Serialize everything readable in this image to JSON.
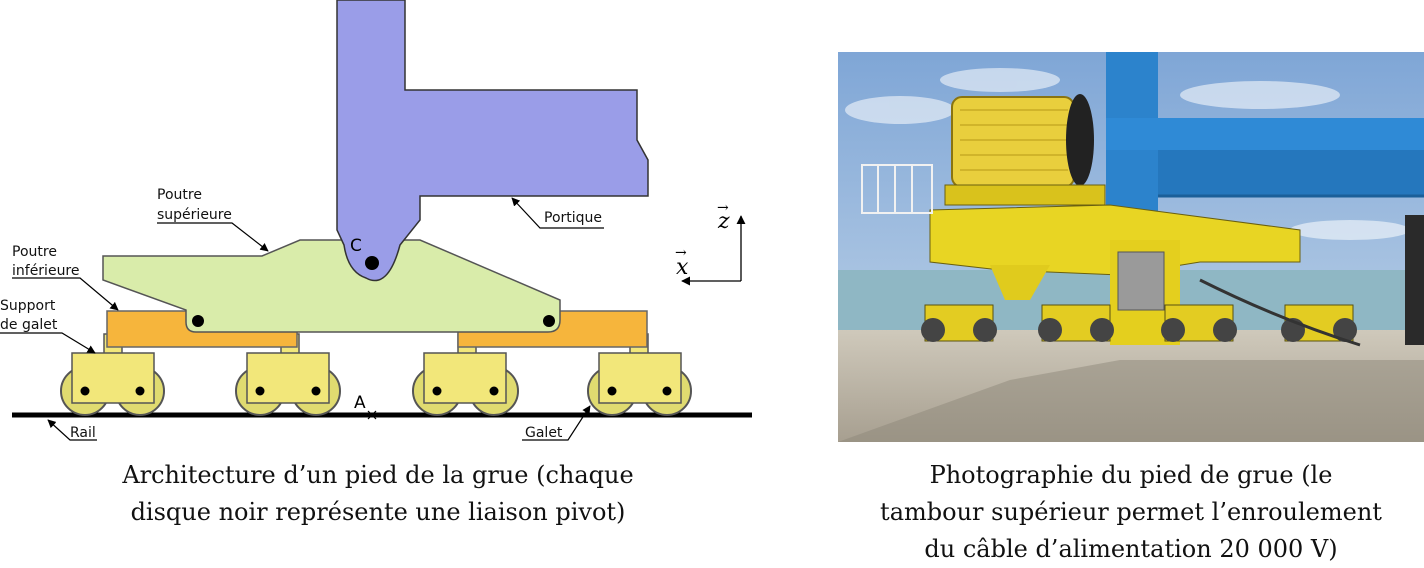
{
  "diagram": {
    "labels": {
      "poutre_sup_l1": "Poutre",
      "poutre_sup_l2": "supérieure",
      "poutre_inf_l1": "Poutre",
      "poutre_inf_l2": "inférieure",
      "support_l1": "Support",
      "support_l2": "de galet",
      "portique": "Portique",
      "rail": "Rail",
      "galet": "Galet",
      "point_c": "C",
      "point_a": "A",
      "axis_z": "z",
      "axis_x": "x",
      "axis_arrow": "→"
    },
    "colors": {
      "portique": "#9a9de8",
      "poutre_superieure": "#d9ecaa",
      "poutre_inferieure": "#f6b53c",
      "support_galet": "#f2e77a",
      "galet": "#e0db70",
      "rail": "#000000"
    }
  },
  "photo": {
    "description_icon": "crane-foot-photo",
    "colors": {
      "sky": "#9dbde0",
      "sea": "#8fb7c4",
      "ground": "#bdb5a6",
      "machine": "#e8d523",
      "blue_beam": "#2c83cc"
    }
  },
  "captions": {
    "left_l1": "Architecture d’un pied de la grue (chaque",
    "left_l2": "disque noir représente une liaison pivot)",
    "right_l1": "Photographie du pied de grue (le",
    "right_l2": "tambour supérieur permet l’enroulement",
    "right_l3": "du câble d’alimentation 20 000 V)"
  }
}
